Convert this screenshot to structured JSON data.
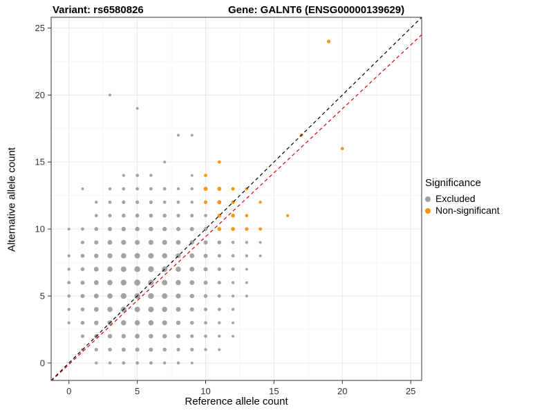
{
  "chart_data": {
    "type": "scatter",
    "title_left": "Variant: rs6580826",
    "title_right": "Gene: GALNT6 (ENSG00000139629)",
    "xlabel": "Reference allele count",
    "ylabel": "Alternative allele count",
    "xlim": [
      -1.3,
      25.8
    ],
    "ylim": [
      -1.3,
      25.8
    ],
    "xticks": [
      0,
      5,
      10,
      15,
      20,
      25
    ],
    "yticks": [
      0,
      5,
      10,
      15,
      20,
      25
    ],
    "minor_ticks": [
      2.5,
      7.5,
      12.5,
      17.5,
      22.5
    ],
    "grid": true,
    "colors": {
      "excluded": "#9e9e9e",
      "non_significant": "#f2920c",
      "identity_line": "#000000",
      "fit_line": "#dd0000",
      "grid_major": "#e8e8e8",
      "grid_minor": "#f4f4f4",
      "panel_border": "#333333",
      "tick_text": "#333333"
    },
    "legend": {
      "title": "Significance",
      "position": "right",
      "entries": [
        {
          "label": "Excluded",
          "color": "#9e9e9e"
        },
        {
          "label": "Non-significant",
          "color": "#f2920c"
        }
      ]
    },
    "lines": [
      {
        "name": "identity",
        "color": "#000000",
        "dash": "5,4",
        "x1": -1.3,
        "y1": -1.3,
        "x2": 25.8,
        "y2": 25.8
      },
      {
        "name": "fit",
        "color": "#dd0000",
        "dash": "5,4",
        "x1": -1.3,
        "y1": -1.35,
        "x2": 25.8,
        "y2": 24.5
      }
    ],
    "series": [
      {
        "name": "Excluded",
        "color": "#9e9e9e",
        "points": [
          [
            2,
            0,
            2.2
          ],
          [
            3,
            0,
            2.2
          ],
          [
            4,
            0,
            2.4
          ],
          [
            5,
            0,
            2.4
          ],
          [
            6,
            0,
            2.4
          ],
          [
            7,
            0,
            2.2
          ],
          [
            8,
            0,
            2.2
          ],
          [
            9,
            0,
            2.0
          ],
          [
            1,
            1,
            2.2
          ],
          [
            2,
            1,
            2.6
          ],
          [
            3,
            1,
            2.8
          ],
          [
            4,
            1,
            3.0
          ],
          [
            5,
            1,
            3.0
          ],
          [
            6,
            1,
            3.0
          ],
          [
            7,
            1,
            2.8
          ],
          [
            8,
            1,
            2.6
          ],
          [
            9,
            1,
            2.6
          ],
          [
            10,
            1,
            2.2
          ],
          [
            11,
            1,
            2.0
          ],
          [
            1,
            2,
            2.6
          ],
          [
            2,
            2,
            3.0
          ],
          [
            3,
            2,
            3.2
          ],
          [
            4,
            2,
            3.2
          ],
          [
            5,
            2,
            3.4
          ],
          [
            6,
            2,
            3.2
          ],
          [
            7,
            2,
            3.2
          ],
          [
            8,
            2,
            3.0
          ],
          [
            9,
            2,
            2.6
          ],
          [
            10,
            2,
            2.4
          ],
          [
            11,
            2,
            2.2
          ],
          [
            12,
            2,
            2.0
          ],
          [
            0,
            3,
            2.2
          ],
          [
            1,
            3,
            2.8
          ],
          [
            2,
            3,
            3.2
          ],
          [
            3,
            3,
            3.6
          ],
          [
            4,
            3,
            3.8
          ],
          [
            5,
            3,
            3.8
          ],
          [
            6,
            3,
            3.8
          ],
          [
            7,
            3,
            3.6
          ],
          [
            8,
            3,
            3.2
          ],
          [
            9,
            3,
            2.8
          ],
          [
            10,
            3,
            2.4
          ],
          [
            11,
            3,
            2.2
          ],
          [
            12,
            3,
            2.0
          ],
          [
            0,
            4,
            2.2
          ],
          [
            1,
            4,
            2.8
          ],
          [
            2,
            4,
            3.4
          ],
          [
            3,
            4,
            3.8
          ],
          [
            4,
            4,
            4.0
          ],
          [
            5,
            4,
            4.0
          ],
          [
            6,
            4,
            4.0
          ],
          [
            7,
            4,
            3.8
          ],
          [
            8,
            4,
            3.4
          ],
          [
            9,
            4,
            3.0
          ],
          [
            10,
            4,
            2.6
          ],
          [
            11,
            4,
            2.4
          ],
          [
            12,
            4,
            2.2
          ],
          [
            0,
            5,
            2.4
          ],
          [
            1,
            5,
            3.0
          ],
          [
            2,
            5,
            3.4
          ],
          [
            3,
            5,
            3.8
          ],
          [
            4,
            5,
            4.2
          ],
          [
            5,
            5,
            4.2
          ],
          [
            6,
            5,
            4.2
          ],
          [
            7,
            5,
            4.0
          ],
          [
            8,
            5,
            3.6
          ],
          [
            9,
            5,
            3.2
          ],
          [
            10,
            5,
            2.8
          ],
          [
            11,
            5,
            2.4
          ],
          [
            12,
            5,
            2.2
          ],
          [
            13,
            5,
            2.0
          ],
          [
            0,
            6,
            2.4
          ],
          [
            1,
            6,
            3.0
          ],
          [
            2,
            6,
            3.4
          ],
          [
            3,
            6,
            3.8
          ],
          [
            4,
            6,
            4.2
          ],
          [
            5,
            6,
            4.4
          ],
          [
            6,
            6,
            4.2
          ],
          [
            7,
            6,
            4.0
          ],
          [
            8,
            6,
            3.8
          ],
          [
            9,
            6,
            3.4
          ],
          [
            10,
            6,
            3.0
          ],
          [
            11,
            6,
            2.6
          ],
          [
            12,
            6,
            2.2
          ],
          [
            13,
            6,
            2.0
          ],
          [
            0,
            7,
            2.2
          ],
          [
            1,
            7,
            2.8
          ],
          [
            2,
            7,
            3.4
          ],
          [
            3,
            7,
            3.8
          ],
          [
            4,
            7,
            4.0
          ],
          [
            5,
            7,
            4.2
          ],
          [
            6,
            7,
            4.2
          ],
          [
            7,
            7,
            4.0
          ],
          [
            8,
            7,
            3.8
          ],
          [
            9,
            7,
            3.4
          ],
          [
            10,
            7,
            3.0
          ],
          [
            11,
            7,
            2.6
          ],
          [
            12,
            7,
            2.4
          ],
          [
            13,
            7,
            2.0
          ],
          [
            0,
            8,
            2.2
          ],
          [
            1,
            8,
            2.8
          ],
          [
            2,
            8,
            3.2
          ],
          [
            3,
            8,
            3.6
          ],
          [
            4,
            8,
            3.8
          ],
          [
            5,
            8,
            4.0
          ],
          [
            6,
            8,
            4.0
          ],
          [
            7,
            8,
            3.8
          ],
          [
            8,
            8,
            3.6
          ],
          [
            9,
            8,
            3.4
          ],
          [
            10,
            8,
            3.0
          ],
          [
            11,
            8,
            2.6
          ],
          [
            12,
            8,
            2.4
          ],
          [
            13,
            8,
            2.2
          ],
          [
            14,
            8,
            2.0
          ],
          [
            1,
            9,
            2.6
          ],
          [
            2,
            9,
            3.0
          ],
          [
            3,
            9,
            3.4
          ],
          [
            4,
            9,
            3.6
          ],
          [
            5,
            9,
            3.6
          ],
          [
            6,
            9,
            3.6
          ],
          [
            7,
            9,
            3.6
          ],
          [
            8,
            9,
            3.4
          ],
          [
            9,
            9,
            3.2
          ],
          [
            10,
            9,
            3.0
          ],
          [
            11,
            9,
            2.8
          ],
          [
            12,
            9,
            2.4
          ],
          [
            13,
            9,
            2.2
          ],
          [
            14,
            9,
            2.0
          ],
          [
            0,
            10,
            2.0
          ],
          [
            1,
            10,
            2.4
          ],
          [
            2,
            10,
            2.8
          ],
          [
            3,
            10,
            3.0
          ],
          [
            4,
            10,
            3.2
          ],
          [
            5,
            10,
            3.2
          ],
          [
            6,
            10,
            3.2
          ],
          [
            7,
            10,
            3.2
          ],
          [
            8,
            10,
            3.0
          ],
          [
            9,
            10,
            3.0
          ],
          [
            10,
            10,
            2.8
          ],
          [
            2,
            11,
            2.4
          ],
          [
            3,
            11,
            2.6
          ],
          [
            4,
            11,
            2.8
          ],
          [
            5,
            11,
            2.8
          ],
          [
            6,
            11,
            2.8
          ],
          [
            7,
            11,
            2.8
          ],
          [
            8,
            11,
            2.6
          ],
          [
            9,
            11,
            2.6
          ],
          [
            10,
            11,
            2.4
          ],
          [
            2,
            12,
            2.2
          ],
          [
            3,
            12,
            2.4
          ],
          [
            4,
            12,
            2.6
          ],
          [
            5,
            12,
            2.6
          ],
          [
            6,
            12,
            2.6
          ],
          [
            7,
            12,
            2.4
          ],
          [
            8,
            12,
            2.4
          ],
          [
            9,
            12,
            2.2
          ],
          [
            1,
            13,
            2.0
          ],
          [
            3,
            13,
            2.2
          ],
          [
            4,
            13,
            2.4
          ],
          [
            5,
            13,
            2.4
          ],
          [
            6,
            13,
            2.4
          ],
          [
            7,
            13,
            2.4
          ],
          [
            8,
            13,
            2.2
          ],
          [
            9,
            13,
            2.2
          ],
          [
            4,
            14,
            2.2
          ],
          [
            5,
            14,
            2.4
          ],
          [
            6,
            14,
            2.2
          ],
          [
            9,
            14,
            2.0
          ],
          [
            7,
            15,
            2.0
          ],
          [
            8,
            17,
            2.0
          ],
          [
            9,
            17,
            2.0
          ],
          [
            5,
            19,
            2.0
          ],
          [
            3,
            20,
            2.0
          ]
        ]
      },
      {
        "name": "Non-significant",
        "color": "#f2920c",
        "points": [
          [
            10,
            14,
            2.4
          ],
          [
            11,
            15,
            2.4
          ],
          [
            10,
            13,
            3.0
          ],
          [
            11,
            13,
            3.0
          ],
          [
            12,
            13,
            2.6
          ],
          [
            13,
            13,
            2.4
          ],
          [
            10,
            12,
            2.6
          ],
          [
            11,
            12,
            3.0
          ],
          [
            12,
            12,
            2.6
          ],
          [
            14,
            12,
            2.2
          ],
          [
            11,
            11,
            2.8
          ],
          [
            12,
            11,
            2.8
          ],
          [
            13,
            11,
            2.4
          ],
          [
            16,
            11,
            2.2
          ],
          [
            11,
            10,
            2.8
          ],
          [
            12,
            10,
            2.8
          ],
          [
            13,
            10,
            2.6
          ],
          [
            14,
            10,
            2.4
          ],
          [
            17,
            17,
            2.4
          ],
          [
            19,
            24,
            2.6
          ],
          [
            20,
            16,
            2.4
          ]
        ]
      }
    ]
  }
}
